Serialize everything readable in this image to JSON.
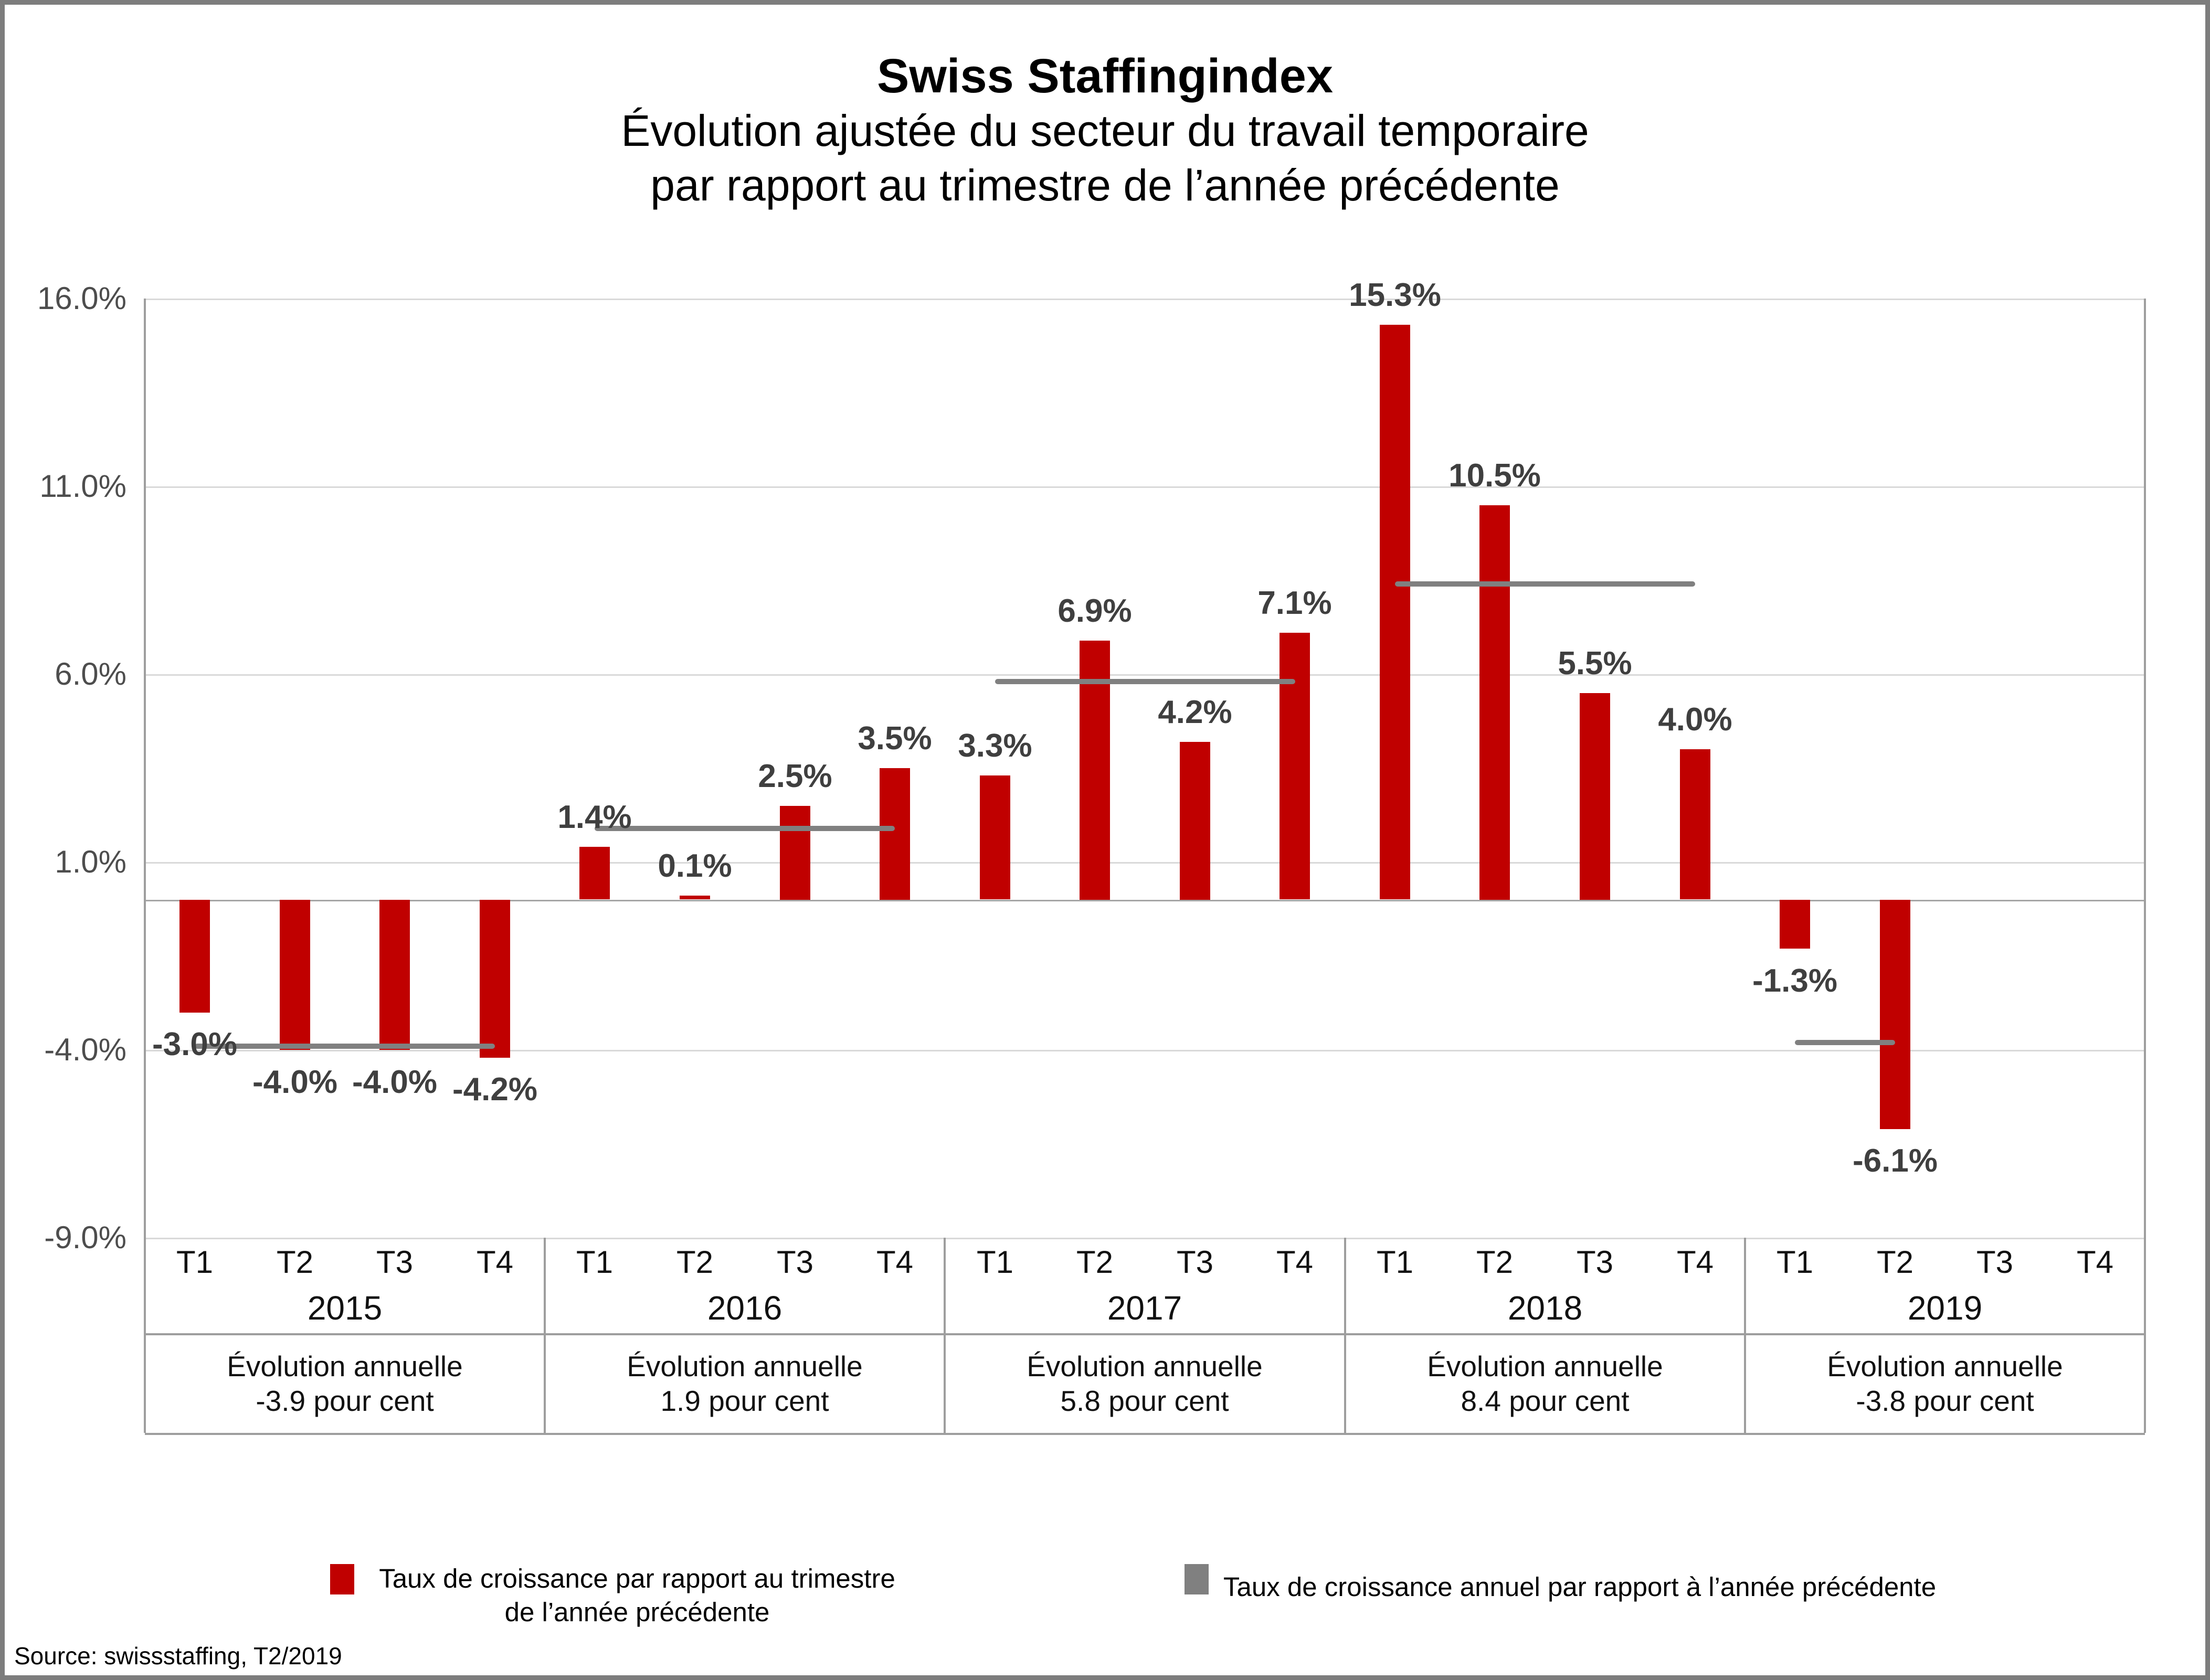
{
  "title": "Swiss Staffingindex",
  "subtitle_line1": "Évolution ajustée du secteur du travail temporaire",
  "subtitle_line2": "par rapport au trimestre de l’année précédente",
  "source": "Source: swissstaffing, T2/2019",
  "legend": {
    "quarterly_label_line1": "Taux de croissance par rapport au trimestre",
    "quarterly_label_line2": "de l’année précédente",
    "annual_label": "Taux de croissance annuel par rapport à l’année précédente"
  },
  "colors": {
    "bar": "#c00000",
    "annual_line": "#808080",
    "gridline": "#d9d9d9",
    "zero_line": "#a6a6a6",
    "table_border": "#9e9e9e",
    "data_label": "#3f3f3f",
    "tick_label": "#4d4d4d",
    "frame": "#7d7d7d"
  },
  "chart_data": {
    "type": "bar",
    "title": "Swiss Staffingindex",
    "xlabel": "",
    "ylabel": "",
    "ylim": [
      -9.0,
      16.0
    ],
    "grid": true,
    "legend_position": "bottom",
    "yticks": [
      {
        "value": 16.0,
        "label": "16.0%"
      },
      {
        "value": 11.0,
        "label": "11.0%"
      },
      {
        "value": 6.0,
        "label": "6.0%"
      },
      {
        "value": 1.0,
        "label": "1.0%"
      },
      {
        "value": -4.0,
        "label": "-4.0%"
      },
      {
        "value": -9.0,
        "label": "-9.0%"
      }
    ],
    "quarter_labels": [
      "T1",
      "T2",
      "T3",
      "T4"
    ],
    "series": [
      {
        "name": "Taux de croissance par rapport au trimestre de l’année précédente",
        "type": "bar",
        "color": "#c00000"
      },
      {
        "name": "Taux de croissance annuel par rapport à l’année précédente",
        "type": "line",
        "color": "#808080"
      }
    ],
    "years": [
      {
        "year": "2015",
        "values": [
          -3.0,
          -4.0,
          -4.0,
          -4.2
        ],
        "bar_labels": [
          "-3.0%",
          "-4.0%",
          "-4.0%",
          "-4.2%"
        ],
        "annual_value": -3.9,
        "annual_line1": "Évolution annuelle",
        "annual_line2": "-3.9 pour cent"
      },
      {
        "year": "2016",
        "values": [
          1.4,
          0.1,
          2.5,
          3.5
        ],
        "bar_labels": [
          "1.4%",
          "0.1%",
          "2.5%",
          "3.5%"
        ],
        "annual_value": 1.9,
        "annual_line1": "Évolution annuelle",
        "annual_line2": "1.9 pour cent"
      },
      {
        "year": "2017",
        "values": [
          3.3,
          6.9,
          4.2,
          7.1
        ],
        "bar_labels": [
          "3.3%",
          "6.9%",
          "4.2%",
          "7.1%"
        ],
        "annual_value": 5.8,
        "annual_line1": "Évolution annuelle",
        "annual_line2": "5.8 pour cent"
      },
      {
        "year": "2018",
        "values": [
          15.3,
          10.5,
          5.5,
          4.0
        ],
        "bar_labels": [
          "15.3%",
          "10.5%",
          "5.5%",
          "4.0%"
        ],
        "annual_value": 8.4,
        "annual_line1": "Évolution annuelle",
        "annual_line2": "8.4 pour cent"
      },
      {
        "year": "2019",
        "values": [
          -1.3,
          -6.1,
          null,
          null
        ],
        "bar_labels": [
          "-1.3%",
          "-6.1%",
          null,
          null
        ],
        "annual_value": -3.8,
        "annual_line1": "Évolution annuelle",
        "annual_line2": "-3.8 pour cent"
      }
    ]
  }
}
